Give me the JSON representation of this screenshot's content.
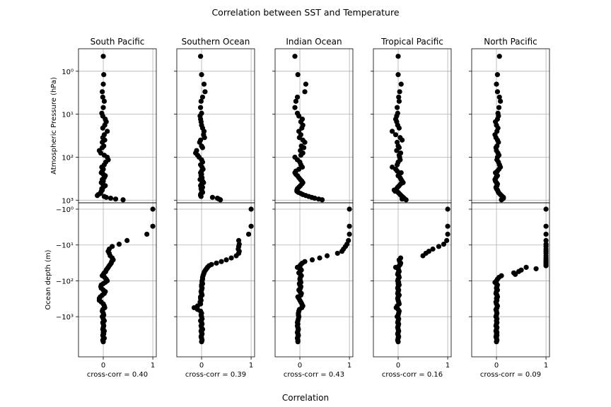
{
  "figure": {
    "title": "Correlation between SST and Temperature",
    "xlabel": "Correlation"
  },
  "chart_data": {
    "type": "scatter",
    "title": "Correlation between SST and Temperature",
    "xlabel": "Correlation",
    "xlim": [
      -0.5,
      1.07
    ],
    "xticks": [
      0,
      1
    ],
    "xtick_labels": [
      "0",
      "1"
    ],
    "atmosphere": {
      "ylabel": "Atmospheric Pressure (hPa)",
      "scale": "log",
      "inverted": true,
      "ylim": [
        0.3,
        1150
      ],
      "ticks": [
        1,
        10,
        100,
        1000
      ],
      "tick_labels": [
        "10⁰",
        "10¹",
        "10²",
        "10³"
      ],
      "levels": [
        0.45,
        1.2,
        2,
        3,
        4,
        5,
        7,
        9.5,
        11,
        13,
        15,
        18,
        21,
        25,
        30,
        35,
        40,
        45,
        55,
        60,
        70,
        80,
        90,
        100,
        115,
        130,
        150,
        170,
        190,
        210,
        230,
        250,
        270,
        300,
        330,
        360,
        390,
        420,
        460,
        500,
        540,
        580,
        620,
        660,
        700,
        740,
        780,
        820,
        860,
        900,
        940,
        980
      ]
    },
    "ocean": {
      "ylabel": "Ocean depth (m)",
      "scale": "log",
      "ylim": [
        -1,
        -8000
      ],
      "ticks": [
        -1,
        -10,
        -100,
        -1000
      ],
      "tick_labels": [
        "−10⁰",
        "−10¹",
        "−10²",
        "−10³"
      ],
      "depths": [
        -1,
        -3,
        -5,
        -7.5,
        -9.5,
        -11,
        -13,
        -15,
        -17,
        -20,
        -23,
        -26,
        -29,
        -32,
        -35,
        -38,
        -42,
        -46,
        -50,
        -55,
        -60,
        -66,
        -72,
        -80,
        -90,
        -100,
        -110,
        -120,
        -130,
        -145,
        -160,
        -180,
        -200,
        -225,
        -250,
        -280,
        -310,
        -350,
        -390,
        -440,
        -500,
        -560,
        -630,
        -700,
        -800,
        -900,
        -1000,
        -1150,
        -1300,
        -1450,
        -1600,
        -1800,
        -2000,
        -2250,
        -2500,
        -2750,
        -3000,
        -3300,
        -3600,
        -4000,
        -4500,
        -5000
      ]
    },
    "panels": [
      {
        "region": "South Pacific",
        "stat": "cross-corr = 0.40",
        "atmosphere_corr": [
          0,
          0.01,
          0,
          -0.02,
          -0.01,
          0.02,
          0,
          -0.03,
          -0.01,
          0.04,
          0.06,
          0.03,
          -0.01,
          0.08,
          0.02,
          -0.01,
          0.03,
          -0.02,
          0.01,
          -0.02,
          -0.08,
          -0.05,
          0.02,
          0.08,
          0.1,
          0.05,
          0.02,
          -0.03,
          0,
          -0.02,
          -0.04,
          0,
          0.04,
          0.02,
          -0.02,
          0,
          -0.04,
          -0.01,
          0.04,
          0,
          -0.03,
          -0.02,
          -0.04,
          -0.05,
          -0.06,
          -0.1,
          -0.12,
          0.02,
          0.06,
          0.15,
          0.25,
          0.4
        ],
        "ocean_corr": [
          1,
          1,
          0.88,
          0.48,
          0.32,
          0.18,
          0.12,
          0.1,
          0.12,
          0.14,
          0.18,
          0.2,
          0.17,
          0.16,
          0.14,
          0.12,
          0.1,
          0.08,
          0.06,
          0.05,
          0.02,
          0,
          -0.02,
          0.03,
          0.06,
          0.08,
          0.04,
          0,
          -0.04,
          -0.05,
          -0.04,
          0,
          0.04,
          0.02,
          -0.02,
          -0.06,
          -0.08,
          -0.08,
          -0.04,
          0,
          0.02,
          0.03,
          -0.01,
          -0.02,
          0,
          0.01,
          -0.02,
          0,
          0.02,
          -0.01,
          0,
          0.01,
          0,
          -0.01,
          0.02,
          0,
          0.01,
          -0.01,
          0,
          0.02,
          -0.01,
          0
        ]
      },
      {
        "region": "Southern Ocean",
        "stat": "cross-corr = 0.39",
        "atmosphere_corr": [
          -0.02,
          0,
          0.05,
          0.07,
          0.02,
          -0.01,
          -0.02,
          0,
          -0.03,
          -0.02,
          -0.01,
          0,
          0.02,
          0.05,
          0.04,
          0.06,
          -0.02,
          -0.04,
          0,
          0.02,
          -0.1,
          -0.12,
          -0.08,
          -0.05,
          0,
          0.02,
          -0.02,
          0.01,
          0.03,
          0,
          -0.02,
          0,
          -0.01,
          0.01,
          -0.03,
          0.02,
          0.04,
          0,
          -0.02,
          0.02,
          -0.01,
          0,
          0.01,
          0.02,
          -0.01,
          -0.02,
          -0.02,
          -0.01,
          0.22,
          0.32,
          0.35,
          0.38
        ],
        "ocean_corr": [
          1,
          1,
          0.95,
          0.75,
          0.76,
          0.75,
          0.74,
          0.76,
          0.75,
          0.7,
          0.6,
          0.5,
          0.4,
          0.3,
          0.2,
          0.15,
          0.12,
          0.1,
          0.08,
          0.06,
          0.05,
          0.04,
          0.03,
          0.02,
          0.02,
          0.01,
          0.01,
          0.02,
          0,
          0,
          0.01,
          0,
          -0.01,
          0,
          0.01,
          -0.02,
          -0.02,
          -0.01,
          -0.03,
          -0.02,
          -0.08,
          -0.15,
          -0.08,
          -0.02,
          0,
          -0.01,
          0,
          0.01,
          -0.02,
          0,
          0.01,
          -0.01,
          0,
          0.02,
          -0.01,
          0,
          0.01,
          0,
          -0.01,
          0,
          0.01,
          0
        ]
      },
      {
        "region": "Indian Ocean",
        "stat": "cross-corr = 0.43",
        "atmosphere_corr": [
          -0.1,
          -0.04,
          0.12,
          0.1,
          -0.05,
          -0.08,
          -0.1,
          -0.05,
          -0.02,
          0.05,
          0.02,
          0.06,
          0.04,
          -0.02,
          0.02,
          -0.01,
          0.06,
          0.1,
          0.03,
          0.08,
          0.01,
          0.06,
          0.02,
          -0.1,
          -0.05,
          0,
          0.02,
          0.05,
          -0.02,
          -0.08,
          -0.1,
          -0.08,
          -0.05,
          -0.02,
          0.01,
          0.04,
          0.06,
          0.04,
          0.01,
          -0.02,
          -0.05,
          -0.06,
          -0.06,
          -0.03,
          0.02,
          0.06,
          0.12,
          0.18,
          0.24,
          0.3,
          0.38,
          0.45
        ],
        "ocean_corr": [
          1,
          1,
          1,
          0.98,
          0.95,
          0.92,
          0.88,
          0.85,
          0.76,
          0.55,
          0.4,
          0.25,
          0.1,
          0.05,
          0.02,
          0,
          -0.05,
          0.01,
          0.03,
          0,
          -0.02,
          0.01,
          0.03,
          0.01,
          0,
          0.01,
          0.02,
          -0.01,
          0,
          0.02,
          0.01,
          -0.02,
          0,
          0.03,
          0.02,
          -0.04,
          -0.02,
          0,
          0.02,
          0.04,
          0.06,
          0.04,
          -0.01,
          -0.02,
          -0.03,
          -0.03,
          -0.02,
          -0.03,
          -0.04,
          -0.05,
          -0.04,
          -0.05,
          -0.04,
          -0.03,
          -0.04,
          -0.05,
          -0.04,
          -0.03,
          -0.04,
          -0.05,
          -0.04,
          -0.04
        ]
      },
      {
        "region": "Tropical Pacific",
        "stat": "cross-corr = 0.16",
        "atmosphere_corr": [
          0,
          0,
          0.06,
          0.03,
          0.01,
          0.02,
          -0.02,
          -0.01,
          -0.03,
          -0.05,
          -0.03,
          -0.01,
          0.02,
          -0.12,
          -0.05,
          0.04,
          0.08,
          -0.02,
          0,
          0.02,
          -0.03,
          0.05,
          0.02,
          0.03,
          0.04,
          0,
          -0.02,
          -0.12,
          -0.05,
          -0.02,
          0.06,
          0.02,
          0,
          0.04,
          0.06,
          0.08,
          0.1,
          0.05,
          0.02,
          -0.01,
          -0.03,
          -0.08,
          -0.06,
          0,
          0.02,
          0.04,
          0.06,
          0.08,
          0.1,
          0.12,
          0.08,
          0.16
        ],
        "ocean_corr": [
          1,
          1,
          1,
          0.98,
          0.92,
          0.82,
          0.7,
          0.62,
          0.56,
          0.5,
          0.05,
          0.02,
          0.03,
          0.05,
          0.04,
          0.02,
          -0.05,
          0,
          0.01,
          0.02,
          0,
          -0.01,
          0.01,
          0.02,
          0,
          -0.01,
          0.01,
          0,
          0.02,
          0,
          -0.01,
          0.01,
          0,
          -0.01,
          0.02,
          0,
          -0.01,
          0,
          0.01,
          0.02,
          -0.02,
          -0.04,
          0,
          0.02,
          0.01,
          0,
          -0.02,
          0.01,
          0,
          -0.01,
          0.01,
          0,
          -0.01,
          0,
          0.01,
          0,
          -0.01,
          0,
          0.01,
          0,
          -0.01,
          0
        ]
      },
      {
        "region": "North Pacific",
        "stat": "cross-corr = 0.09",
        "atmosphere_corr": [
          0.06,
          0.02,
          0,
          0.02,
          0.06,
          0.08,
          0.05,
          0.03,
          0.04,
          0.02,
          -0.02,
          0,
          0.03,
          0.01,
          -0.03,
          -0.01,
          0.02,
          0.04,
          0.01,
          -0.01,
          0,
          0.03,
          0.05,
          0.02,
          0.01,
          0.04,
          0.06,
          0.08,
          0.05,
          0.02,
          -0.02,
          0,
          0.02,
          -0.01,
          -0.03,
          -0.02,
          0,
          0.02,
          0.01,
          -0.01,
          0,
          0.02,
          0.03,
          0.04,
          0.06,
          0.08,
          0.1,
          0.12,
          0.14,
          0.14,
          0.12,
          0.1
        ],
        "ocean_corr": [
          1,
          1,
          1,
          1,
          1,
          1,
          1,
          1,
          1,
          1,
          1,
          1,
          1,
          1,
          1,
          1,
          0.6,
          0.8,
          0.5,
          0.45,
          0.35,
          0.38,
          0.1,
          0.05,
          0.02,
          0,
          -0.03,
          0,
          0.02,
          0.01,
          0,
          0.02,
          0,
          -0.01,
          0.01,
          0.02,
          0,
          0.01,
          -0.01,
          0,
          0.02,
          0.01,
          -0.01,
          0,
          0.01,
          0,
          -0.01,
          0.01,
          0,
          0.01,
          0,
          -0.01,
          0.01,
          0,
          -0.01,
          0.01,
          0,
          0.01,
          -0.01,
          0,
          0.01,
          0
        ]
      }
    ]
  }
}
